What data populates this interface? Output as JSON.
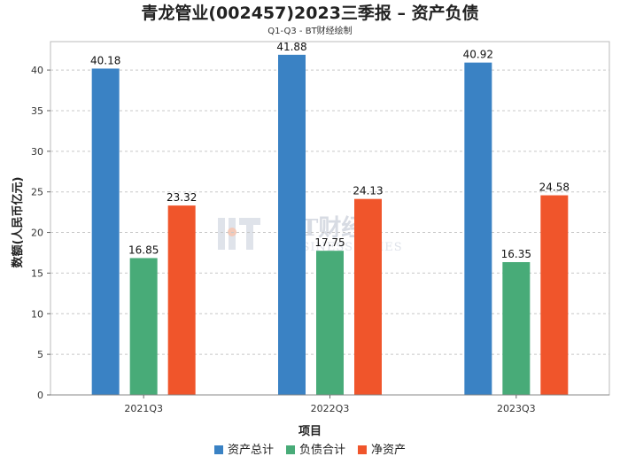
{
  "chart_data": {
    "type": "bar",
    "title": "青龙管业(002457)2023三季报 – 资产负债",
    "subtitle": "Q1-Q3 - BT财经绘制",
    "xlabel": "项目",
    "ylabel": "数额(人民币亿元)",
    "ylim": [
      0,
      43.5
    ],
    "yticks": [
      0,
      5,
      10,
      15,
      20,
      25,
      30,
      35,
      40
    ],
    "grid": true,
    "legend_position": "bottom",
    "categories": [
      "2021Q3",
      "2022Q3",
      "2023Q3"
    ],
    "series": [
      {
        "name": "资产总计",
        "color": "#3a82c4",
        "values": [
          40.18,
          41.88,
          40.92
        ]
      },
      {
        "name": "负债合计",
        "color": "#48ab78",
        "values": [
          16.85,
          17.75,
          16.35
        ]
      },
      {
        "name": "净资产",
        "color": "#f0552b",
        "values": [
          23.32,
          24.13,
          24.58
        ]
      }
    ]
  },
  "watermark": {
    "brand": "BT财经",
    "tagline": "BUSINESS TIMES"
  }
}
